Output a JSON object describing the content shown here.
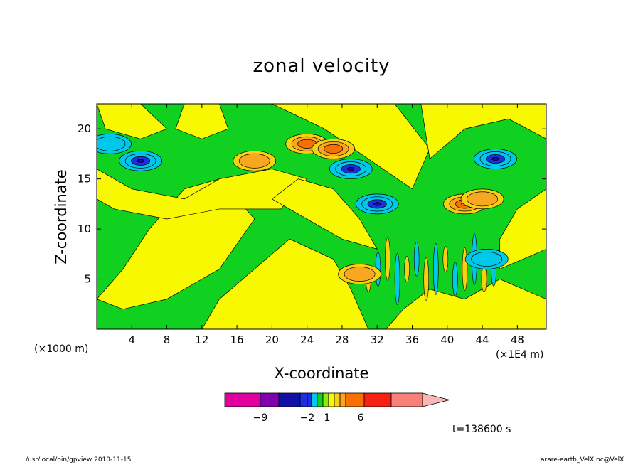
{
  "chart_data": {
    "type": "heatmap",
    "title": "zonal velocity",
    "xlabel": "X-coordinate",
    "ylabel": "Z-coordinate",
    "x_scale_note": "(×1000 m)",
    "x_scale_note_right": "(×1E4 m)",
    "x_ticks": [
      4,
      8,
      12,
      16,
      20,
      24,
      28,
      32,
      36,
      40,
      44,
      48
    ],
    "y_ticks": [
      5,
      10,
      15,
      20
    ],
    "xlim": [
      0,
      51.3
    ],
    "ylim": [
      0,
      22.5
    ],
    "colorbar": {
      "labels": [
        {
          "text": "-9",
          "at": -9
        },
        {
          "text": "-2",
          "at": -2
        },
        {
          "text": "1",
          "at": 1
        },
        {
          "text": "6",
          "at": 6
        }
      ],
      "colors": [
        "#e000a0",
        "#8000b0",
        "#1010a8",
        "#1c2ee0",
        "#00c8e8",
        "#10d020",
        "#90e810",
        "#f8f800",
        "#f8d010",
        "#f8a820",
        "#f87000",
        "#f82010",
        "#f88078",
        "#f8b8b8"
      ]
    },
    "features": [
      {
        "x": 1.5,
        "z": 18.5,
        "value": -2
      },
      {
        "x": 5.0,
        "z": 16.8,
        "value": -4
      },
      {
        "x": 18.0,
        "z": 16.8,
        "value": 3
      },
      {
        "x": 24.0,
        "z": 18.5,
        "value": 4
      },
      {
        "x": 27.0,
        "z": 18.0,
        "value": 4
      },
      {
        "x": 29.0,
        "z": 16.0,
        "value": -4
      },
      {
        "x": 32.0,
        "z": 12.5,
        "value": -4
      },
      {
        "x": 42.0,
        "z": 12.5,
        "value": 5
      },
      {
        "x": 45.5,
        "z": 17.0,
        "value": -4
      },
      {
        "x": 44.0,
        "z": 13.0,
        "value": 3
      },
      {
        "x": 30.0,
        "z": 5.5,
        "value": 3
      },
      {
        "x": 44.5,
        "z": 7.0,
        "value": -2
      }
    ],
    "grid": false
  },
  "annotations": {
    "time": "t=138600 s",
    "footer_left": "/usr/local/bin/gpview  2010-11-15",
    "footer_right": "arare-earth_VelX.nc@VelX"
  }
}
